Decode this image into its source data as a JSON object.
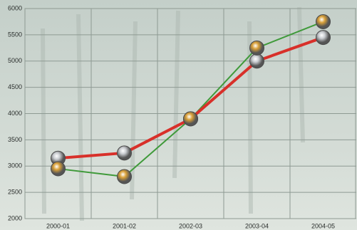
{
  "chart_data": {
    "type": "line",
    "categories": [
      "2000-01",
      "2001-02",
      "2002-03",
      "2003-04",
      "2004-05"
    ],
    "series": [
      {
        "color": "#d8302a",
        "marker_color": "#c9ccd0",
        "values": [
          3150,
          3250,
          3900,
          5000,
          5450
        ]
      },
      {
        "color": "#3f9a3a",
        "marker_color": "#d9a038",
        "values": [
          2950,
          2800,
          3900,
          5250,
          5750
        ]
      }
    ],
    "ylim": [
      2000,
      6000
    ],
    "yticks": [
      2000,
      2500,
      3000,
      3500,
      4000,
      4500,
      5000,
      5500,
      6000
    ],
    "grid": true
  }
}
